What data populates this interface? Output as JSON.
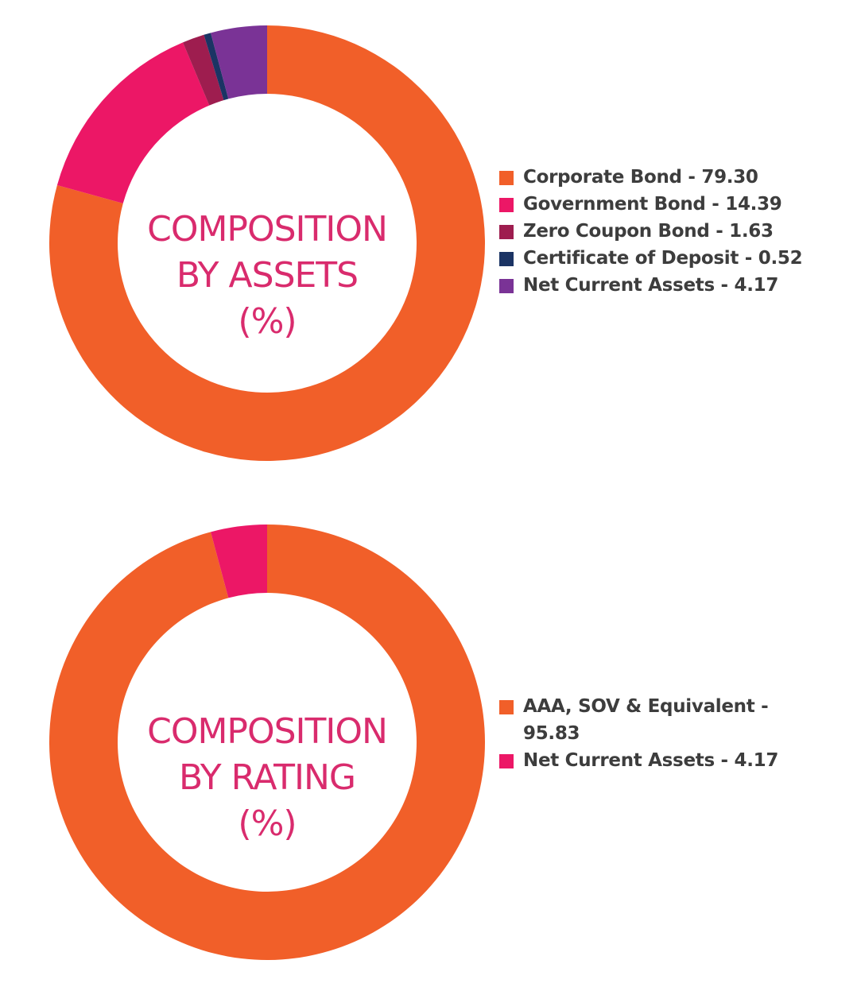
{
  "chart_data": [
    {
      "type": "pie",
      "title_lines": [
        "COMPOSITION",
        "BY ASSETS",
        "(%)"
      ],
      "series": [
        {
          "name": "Corporate Bond",
          "value": 79.3,
          "label": "Corporate Bond - 79.30",
          "color": "#f15f29"
        },
        {
          "name": "Government Bond",
          "value": 14.39,
          "label": "Government Bond - 14.39",
          "color": "#ec1766"
        },
        {
          "name": "Zero Coupon Bond",
          "value": 1.63,
          "label": "Zero Coupon Bond - 1.63",
          "color": "#9e1d4f"
        },
        {
          "name": "Certificate of Deposit",
          "value": 0.52,
          "label": "Certificate of Deposit - 0.52",
          "color": "#1b3464"
        },
        {
          "name": "Net Current Assets",
          "value": 4.17,
          "label": "Net Current Assets - 4.17",
          "color": "#7a3396"
        }
      ],
      "legend_position": "right"
    },
    {
      "type": "pie",
      "title_lines": [
        "COMPOSITION",
        "BY RATING",
        "(%)"
      ],
      "series": [
        {
          "name": "AAA, SOV & Equivalent",
          "value": 95.83,
          "label": "AAA, SOV & Equivalent - 95.83",
          "color": "#f15f29"
        },
        {
          "name": "Net Current Assets",
          "value": 4.17,
          "label": "Net Current Assets - 4.17",
          "color": "#ec1766"
        }
      ],
      "legend_position": "right"
    }
  ]
}
